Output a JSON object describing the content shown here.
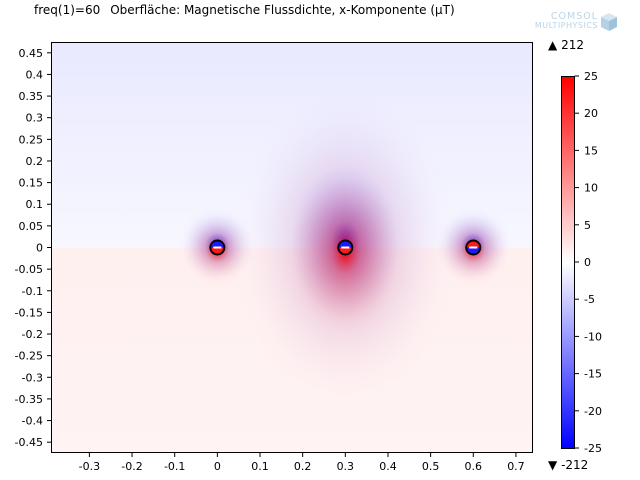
{
  "header": {
    "parameter": "freq(1)=60",
    "plot_title": "Oberfläche: Magnetische Flussdichte, x-Komponente (µT)"
  },
  "logo": {
    "line1": "COMSOL",
    "line2": "MULTIPHYSICS",
    "icon": "cube-icon"
  },
  "range": {
    "max_symbol": "▲",
    "max_value": "212",
    "min_symbol": "▼",
    "min_value": "-212"
  },
  "chart_data": {
    "type": "heatmap",
    "title": "Oberfläche: Magnetische Flussdichte, x-Komponente (µT)",
    "xlim": [
      -0.39,
      0.74
    ],
    "ylim": [
      -0.475,
      0.475
    ],
    "x_ticks": [
      "-0.3",
      "-0.2",
      "-0.1",
      "0",
      "0.1",
      "0.2",
      "0.3",
      "0.4",
      "0.5",
      "0.6",
      "0.7"
    ],
    "y_ticks": [
      "0.45",
      "0.4",
      "0.35",
      "0.3",
      "0.25",
      "0.2",
      "0.15",
      "0.1",
      "0.05",
      "0",
      "-0.05",
      "-0.1",
      "-0.15",
      "-0.2",
      "-0.25",
      "-0.3",
      "-0.35",
      "-0.4",
      "-0.45"
    ],
    "colorbar": {
      "range": [
        -25,
        25
      ],
      "ticks": [
        "25",
        "20",
        "15",
        "10",
        "5",
        "0",
        "-5",
        "-10",
        "-15",
        "-20",
        "-25"
      ],
      "colors": {
        "high": "#ff0000",
        "mid": "#ffffff",
        "low": "#0000ff"
      }
    },
    "conductors": [
      {
        "x": 0.0,
        "y": 0.0
      },
      {
        "x": 0.3,
        "y": 0.0
      },
      {
        "x": 0.6,
        "y": 0.0
      }
    ],
    "grid": false
  }
}
